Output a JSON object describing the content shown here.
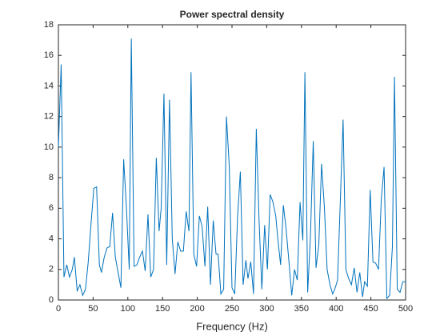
{
  "chart_data": {
    "type": "line",
    "title": "Power spectral density",
    "x_label": "Frequency (Hz)",
    "x": [
      0,
      4,
      8,
      12,
      16,
      20,
      23,
      27,
      31,
      35,
      39,
      43,
      47,
      51,
      55,
      59,
      62,
      66,
      70,
      74,
      78,
      82,
      86,
      90,
      94,
      98,
      102,
      105,
      109,
      113,
      117,
      121,
      125,
      129,
      133,
      137,
      141,
      145,
      148,
      152,
      156,
      160,
      164,
      168,
      172,
      176,
      180,
      184,
      188,
      191,
      195,
      199,
      203,
      207,
      211,
      215,
      219,
      223,
      227,
      230,
      234,
      238,
      242,
      246,
      250,
      254,
      258,
      262,
      266,
      270,
      273,
      277,
      281,
      285,
      289,
      293,
      297,
      301,
      305,
      309,
      313,
      316,
      320,
      324,
      328,
      332,
      336,
      340,
      344,
      348,
      352,
      355,
      359,
      363,
      367,
      371,
      375,
      379,
      383,
      387,
      391,
      395,
      398,
      402,
      406,
      410,
      414,
      418,
      422,
      426,
      430,
      434,
      438,
      441,
      445,
      449,
      453,
      457,
      461,
      465,
      469,
      473,
      477,
      481,
      484,
      488,
      492,
      496,
      500
    ],
    "series": [
      {
        "color": "#0072bd",
        "values": [
          10,
          15.4,
          1.5,
          2.3,
          1.5,
          2,
          2.8,
          0.6,
          1,
          0.3,
          0.7,
          2.5,
          5,
          7.3,
          7.4,
          2.3,
          1.8,
          2.8,
          3.4,
          3.5,
          5.7,
          2.8,
          1.8,
          0.8,
          9.2,
          6,
          2,
          17.1,
          2.2,
          2.3,
          2.8,
          3.2,
          1.9,
          5.6,
          1.5,
          2,
          9.3,
          4.5,
          6,
          13.5,
          2.3,
          13.1,
          4,
          1.7,
          3.8,
          3.2,
          3.2,
          5.8,
          4.5,
          14.9,
          3,
          2.2,
          5.5,
          4.8,
          2.2,
          6.1,
          1,
          5.2,
          3,
          3,
          0.4,
          0.7,
          12,
          8.8,
          0.8,
          0.4,
          5.4,
          8.4,
          1,
          2.6,
          1.4,
          2.5,
          0.4,
          11.2,
          5.2,
          0.7,
          4.9,
          2,
          6.9,
          6.4,
          5.5,
          4,
          2.3,
          6.2,
          4.6,
          2.5,
          0.3,
          2,
          1.3,
          6.4,
          3.9,
          14.9,
          0.5,
          4.2,
          10.4,
          2.1,
          3.6,
          8.9,
          6.1,
          2,
          1,
          0.4,
          0.7,
          1.3,
          6.5,
          11.8,
          2,
          1.4,
          1,
          2.1,
          0.5,
          1.8,
          0.2,
          1.2,
          0.9,
          7.2,
          2.5,
          2.4,
          2,
          6.6,
          8.7,
          0.1,
          0.3,
          3.5,
          14.6,
          0.7,
          0.5,
          1.2,
          1.2
        ]
      }
    ],
    "xlim": [
      0,
      500
    ],
    "xticks": [
      0,
      50,
      100,
      150,
      200,
      250,
      300,
      350,
      400,
      450,
      500
    ],
    "ylim": [
      0,
      18
    ],
    "yticks": [
      0,
      2,
      4,
      6,
      8,
      10,
      12,
      14,
      16,
      18
    ]
  }
}
